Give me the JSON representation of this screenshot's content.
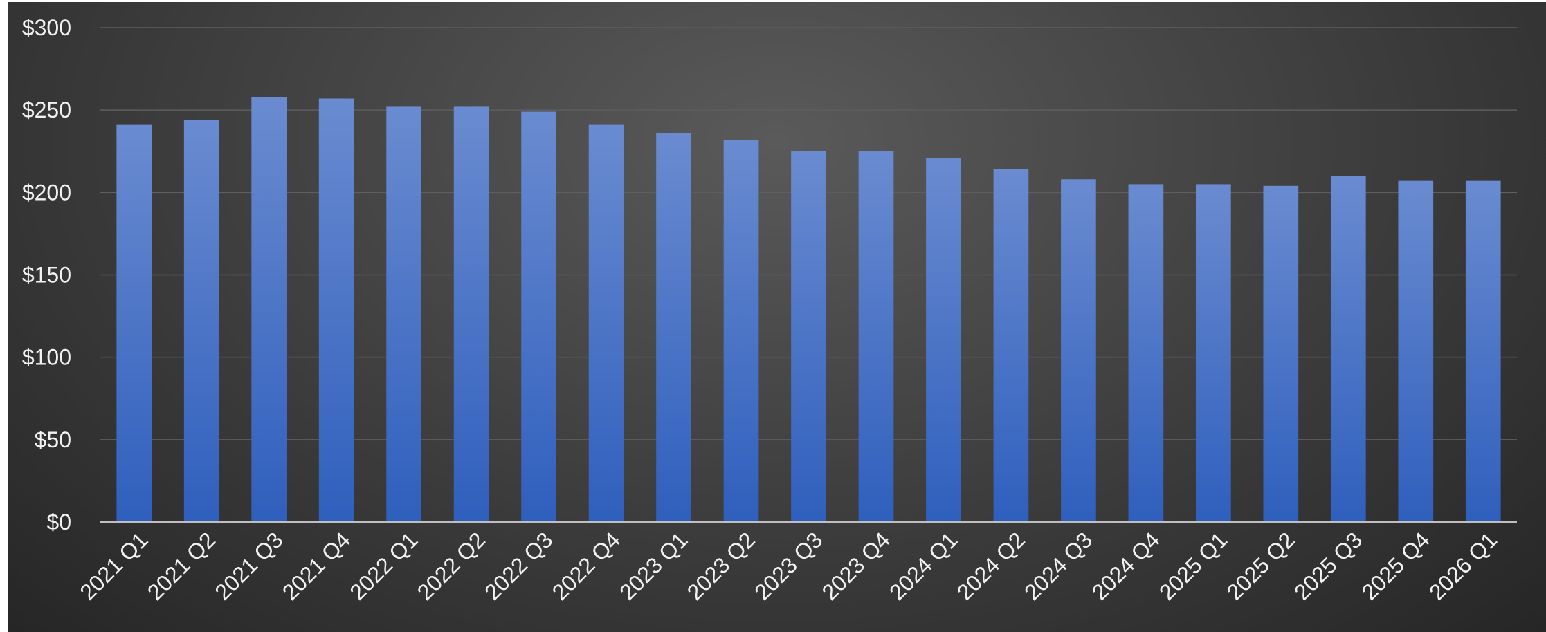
{
  "chart_data": {
    "type": "bar",
    "title": "",
    "xlabel": "",
    "ylabel": "",
    "categories": [
      "2021 Q1",
      "2021 Q2",
      "2021 Q3",
      "2021 Q4",
      "2022 Q1",
      "2022 Q2",
      "2022 Q3",
      "2022 Q4",
      "2023 Q1",
      "2023 Q2",
      "2023 Q3",
      "2023 Q4",
      "2024 Q1",
      "2024 Q2",
      "2024 Q3",
      "2024 Q4",
      "2025 Q1",
      "2025 Q2",
      "2025 Q3",
      "2025 Q4",
      "2026 Q1"
    ],
    "values": [
      241,
      244,
      258,
      257,
      252,
      252,
      249,
      241,
      236,
      232,
      225,
      225,
      221,
      214,
      208,
      205,
      205,
      204,
      210,
      207,
      207
    ],
    "ylim": [
      0,
      300
    ],
    "y_ticks": [
      0,
      50,
      100,
      150,
      200,
      250,
      300
    ],
    "y_tick_labels": [
      "$0",
      "$50",
      "$100",
      "$150",
      "$200",
      "$250",
      "$300"
    ],
    "grid": true,
    "legend": "none",
    "bar_color_top": "#6a8bd0",
    "bar_color_bottom": "#2f5fbd",
    "background": "#3c3c3c"
  }
}
